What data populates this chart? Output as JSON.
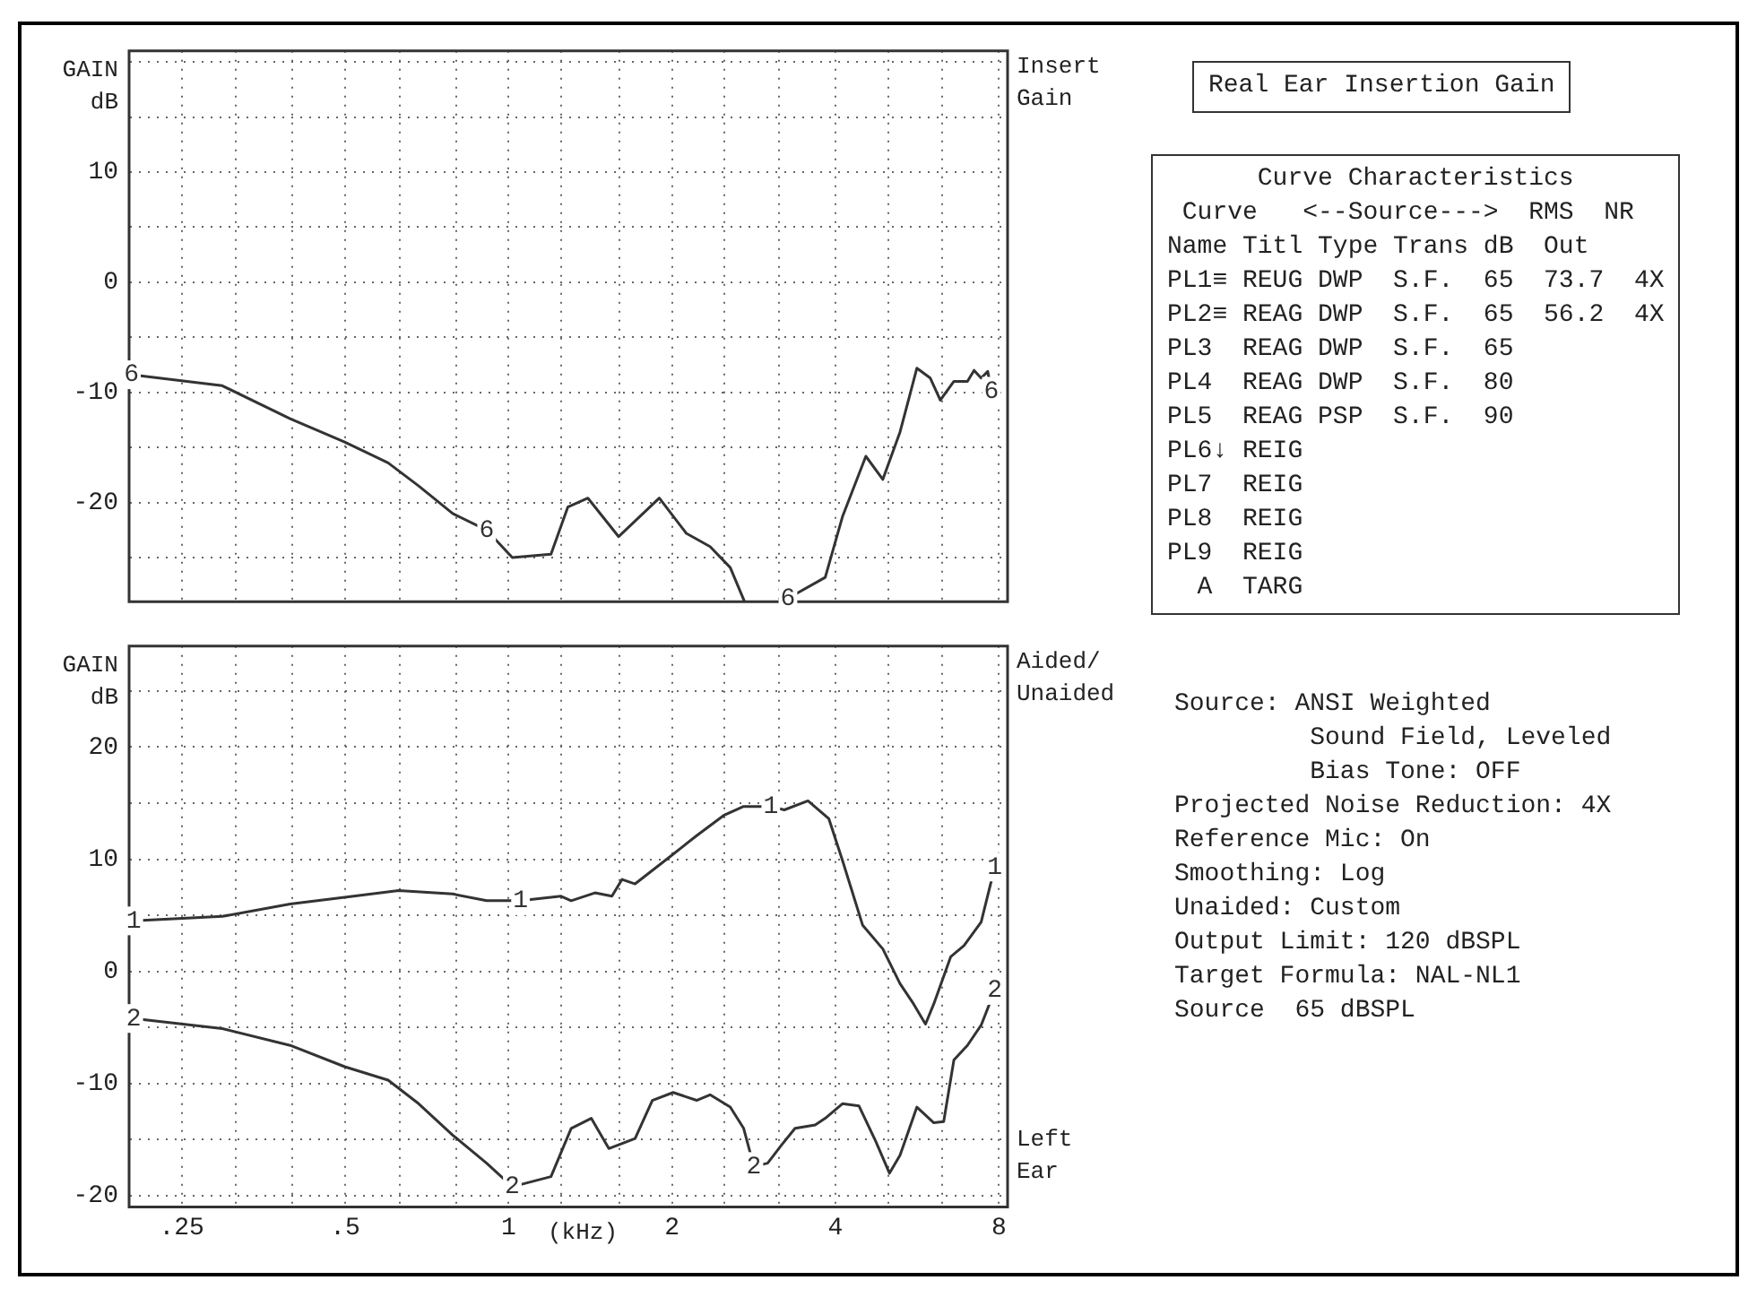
{
  "chart_data": [
    {
      "type": "line",
      "ylabel": "GAIN dB",
      "log": "x",
      "grid": true,
      "legend": false,
      "tick_labels": "y",
      "marker": "none",
      "xlim": [
        0.2,
        8.3
      ],
      "ylim": [
        -29,
        21
      ],
      "xticks": [
        {
          "value": 0.25,
          "label": null
        },
        {
          "value": 0.315,
          "label": null
        },
        {
          "value": 0.4,
          "label": null
        },
        {
          "value": 0.5,
          "label": null
        },
        {
          "value": 0.63,
          "label": null
        },
        {
          "value": 0.8,
          "label": null
        },
        {
          "value": 1,
          "label": null
        },
        {
          "value": 1.25,
          "label": null
        },
        {
          "value": 1.6,
          "label": null
        },
        {
          "value": 2,
          "label": null
        },
        {
          "value": 2.5,
          "label": null
        },
        {
          "value": 3.15,
          "label": null
        },
        {
          "value": 4,
          "label": null
        },
        {
          "value": 5,
          "label": null
        },
        {
          "value": 6.3,
          "label": null
        },
        {
          "value": 8,
          "label": null
        }
      ],
      "yticks": [
        {
          "value": -25,
          "label": null
        },
        -20,
        {
          "value": -15,
          "label": null
        },
        -10,
        {
          "value": -5,
          "label": null
        },
        0,
        {
          "value": 5,
          "label": null
        },
        10,
        {
          "value": 15,
          "label": null
        },
        {
          "value": 20,
          "label": null
        }
      ],
      "annotations": [
        "Insert Gain"
      ],
      "series": [
        {
          "name": "6",
          "color": "#333333",
          "x": [
            0.202,
            0.297,
            0.396,
            0.499,
            0.6,
            0.683,
            0.789,
            0.911,
            1.016,
            1.197,
            1.286,
            1.4,
            1.595,
            1.895,
            2.125,
            2.35,
            2.56,
            2.72,
            3.0,
            3.27,
            3.83,
            4.12,
            4.55,
            4.89,
            5.26,
            5.65,
            5.98,
            6.24,
            6.61,
            7.0,
            7.2,
            7.42,
            7.63,
            7.75
          ],
          "values": [
            -8.4,
            -9.4,
            -12.4,
            -14.5,
            -16.4,
            -18.5,
            -21.0,
            -22.5,
            -25.0,
            -24.7,
            -20.4,
            -19.6,
            -23.1,
            -19.6,
            -22.8,
            -24.0,
            -25.9,
            -29,
            null,
            -28.7,
            -26.8,
            -21.3,
            -15.8,
            -17.9,
            -13.6,
            -7.8,
            -8.7,
            -10.7,
            -9.0,
            -9.0,
            -8.0,
            -8.7,
            -8.1,
            -9.9
          ]
        }
      ]
    },
    {
      "type": "line",
      "ylabel": "GAIN dB",
      "xlabel": "(kHz)",
      "log": "x",
      "grid": true,
      "legend": false,
      "marker": "none",
      "xlim": [
        0.2,
        8.3
      ],
      "ylim": [
        -21,
        29
      ],
      "xticks": [
        {
          "value": 0.25,
          "label": ".25"
        },
        {
          "value": 0.315,
          "label": null
        },
        {
          "value": 0.4,
          "label": null
        },
        {
          "value": 0.5,
          "label": ".5"
        },
        {
          "value": 0.63,
          "label": null
        },
        {
          "value": 0.8,
          "label": null
        },
        1,
        {
          "value": 1.25,
          "label": null
        },
        {
          "value": 1.6,
          "label": null
        },
        2,
        {
          "value": 2.5,
          "label": null
        },
        {
          "value": 3.15,
          "label": null
        },
        4,
        {
          "value": 5,
          "label": null
        },
        {
          "value": 6.3,
          "label": null
        },
        8
      ],
      "yticks": [
        -20,
        {
          "value": -15,
          "label": null
        },
        -10,
        {
          "value": -5,
          "label": null
        },
        0,
        {
          "value": 5,
          "label": null
        },
        10,
        {
          "value": 15,
          "label": null
        },
        20,
        {
          "value": 25,
          "label": null
        }
      ],
      "annotations": [
        "Aided/ Unaided",
        "Left Ear"
      ],
      "series": [
        {
          "name": "1",
          "color": "#333333",
          "x": [
            0.204,
            0.297,
            0.396,
            0.499,
            0.627,
            0.789,
            0.911,
            1.052,
            1.249,
            1.304,
            1.442,
            1.55,
            1.618,
            1.71,
            1.98,
            2.22,
            2.49,
            2.71,
            3.04,
            3.22,
            3.56,
            3.89,
            4.12,
            4.49,
            4.89,
            5.26,
            5.57,
            5.86,
            6.07,
            6.52,
            6.9,
            7.42,
            7.86
          ],
          "values": [
            4.5,
            4.9,
            6.0,
            6.6,
            7.2,
            6.9,
            6.3,
            6.3,
            6.7,
            6.3,
            7.0,
            6.7,
            8.2,
            7.8,
            10.2,
            12.1,
            13.9,
            14.7,
            14.7,
            14.4,
            15.2,
            13.6,
            9.9,
            4.1,
            2.0,
            -1.1,
            -2.9,
            -4.7,
            -2.9,
            1.3,
            2.3,
            4.4,
            9.3
          ]
        },
        {
          "name": "2",
          "color": "#333333",
          "x": [
            0.204,
            0.297,
            0.396,
            0.499,
            0.6,
            0.683,
            0.789,
            0.911,
            1.016,
            1.197,
            1.304,
            1.42,
            1.53,
            1.71,
            1.84,
            2.01,
            2.22,
            2.35,
            2.56,
            2.71,
            2.83,
            3.0,
            3.18,
            3.37,
            3.67,
            3.83,
            4.12,
            4.42,
            4.75,
            5.03,
            5.26,
            5.65,
            6.07,
            6.33,
            6.61,
            7.0,
            7.42,
            7.86
          ],
          "values": [
            -4.2,
            -5.1,
            -6.6,
            -8.5,
            -9.7,
            -11.8,
            -14.6,
            -17.1,
            -19.2,
            -18.3,
            -14.0,
            -13.1,
            -15.8,
            -14.9,
            -11.5,
            -10.8,
            -11.5,
            -11.0,
            -12.1,
            -14.0,
            -17.4,
            -17.1,
            -15.5,
            -14.0,
            -13.7,
            -13.1,
            -11.8,
            -12.0,
            -15.2,
            -18.0,
            -16.4,
            -12.1,
            -13.5,
            -13.4,
            -7.9,
            -6.6,
            -4.8,
            -1.7
          ]
        }
      ]
    },
    {
      "type": "other",
      "title": "Real Ear Insertion Gain"
    },
    {
      "type": "other",
      "title": "Curve Characteristics",
      "annotations": [
        " Curve   <--Source--->  RMS  NR",
        "Name Titl Type Trans dB  Out",
        "PL1≡ REUG DWP  S.F.  65  73.7  4X",
        "PL2≡ REAG DWP  S.F.  65  56.2  4X",
        "PL3  REAG DWP  S.F.  65",
        "PL4  REAG DWP  S.F.  80",
        "PL5  REAG PSP  S.F.  90",
        "PL6↓ REIG",
        "PL7  REIG",
        "PL8  REIG",
        "PL9  REIG",
        "  A  TARG"
      ]
    },
    {
      "type": "other",
      "annotations": [
        "Source: ANSI Weighted",
        "         Sound Field, Leveled",
        "         Bias Tone: OFF",
        "Projected Noise Reduction: 4X",
        "Reference Mic: On",
        "Smoothing: Log",
        "Unaided: Custom",
        "Output Limit: 120 dBSPL",
        "Target Formula: NAL-NL1",
        "Source  65 dBSPL"
      ]
    }
  ]
}
